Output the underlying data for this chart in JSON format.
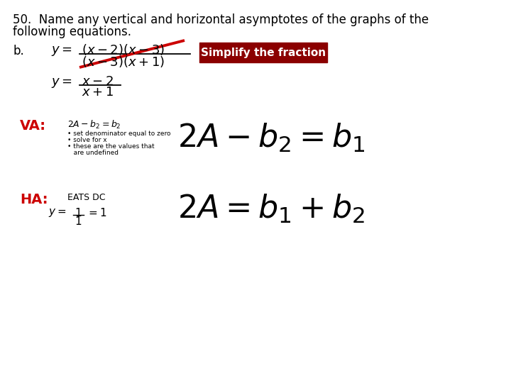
{
  "title_line1": "50.  Name any vertical and horizontal asymptotes of the graphs of the",
  "title_line2": "following equations.",
  "bg_color": "#ffffff",
  "label_b": "b.",
  "simplify_box_text": "Simplify the fraction",
  "simplify_box_color": "#8b0000",
  "va_label": "VA:",
  "va_small_eq": "2A − b₂ = b₂",
  "va_small_note1": "• set denominator equal to zero",
  "va_small_note2": "• solve for x",
  "va_small_note3": "• these are the values that",
  "va_small_note4": "   are undefined",
  "ha_label": "HA:",
  "ha_small_text": "EATS DC",
  "red_color": "#cc0000",
  "dark_red": "#8b0000",
  "black_color": "#000000",
  "white_color": "#ffffff",
  "title_fontsize": 12,
  "label_fontsize": 13,
  "small_fontsize": 9,
  "tiny_fontsize": 6.5,
  "big_fontsize": 32
}
